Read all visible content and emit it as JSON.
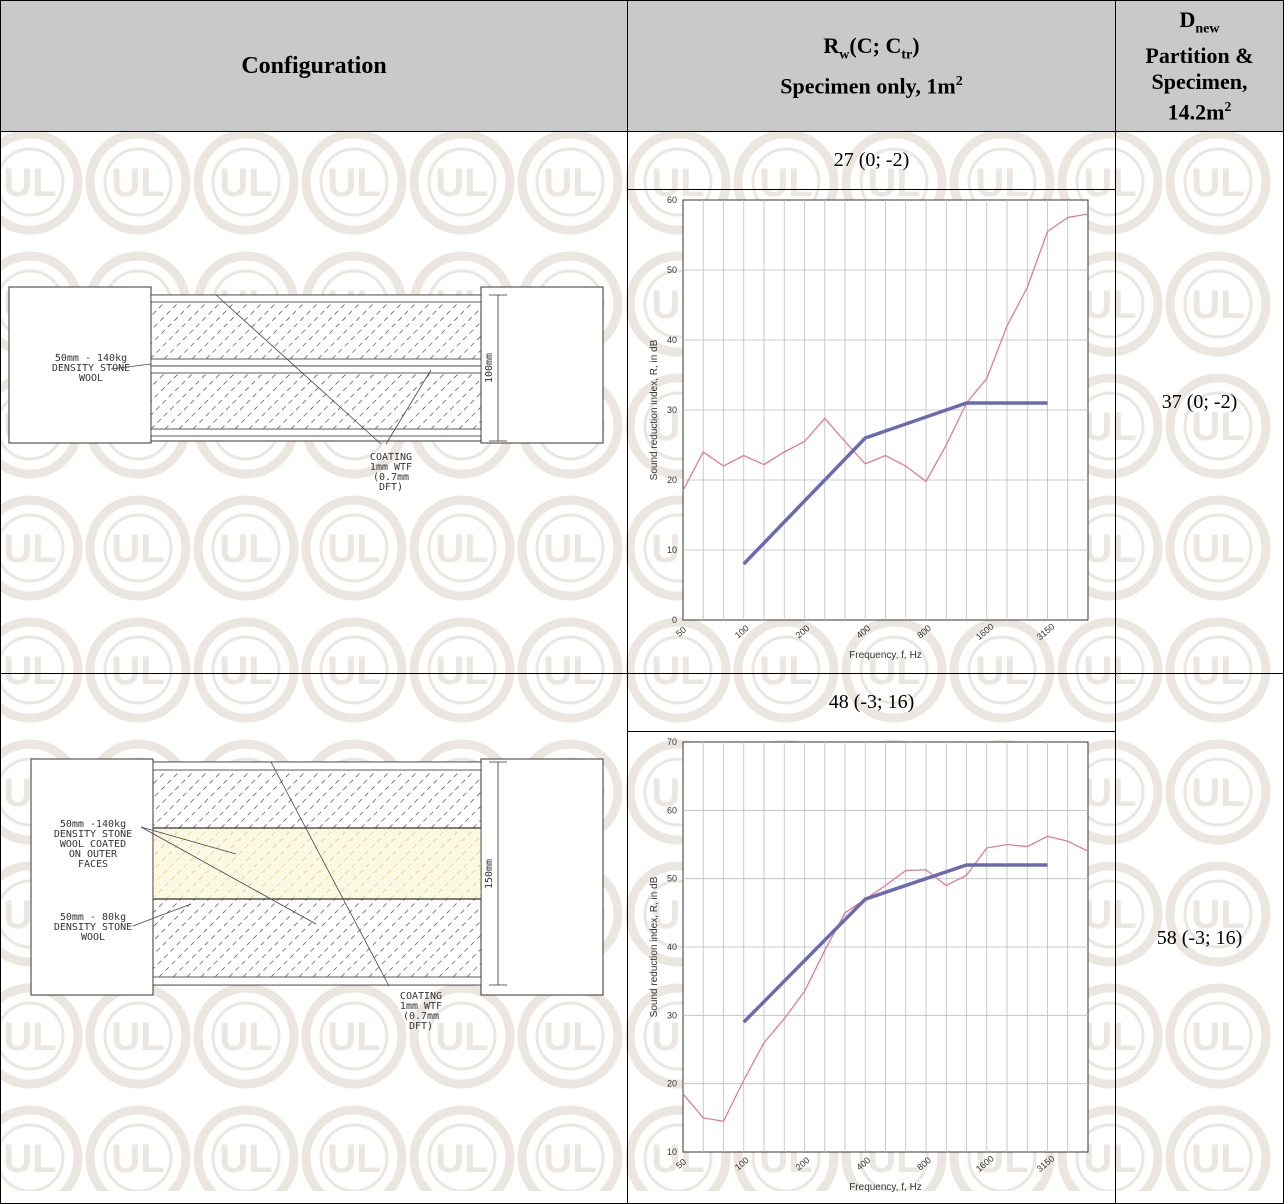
{
  "header": {
    "configuration": "Configuration",
    "rw_line1_R": "R",
    "rw_line1_w": "w",
    "rw_line1_mid": "(C; C",
    "rw_line1_tr": "tr",
    "rw_line1_end": ")",
    "rw_line2": "Specimen only, 1m",
    "rw_line2_sup": "2",
    "dnew_D": "D",
    "dnew_sub": "new",
    "dnew_line2": "Partition &",
    "dnew_line3": "Specimen,",
    "dnew_line4": "14.2m",
    "dnew_line4_sup": "2"
  },
  "rows": [
    {
      "rw": "27 (0; -2)",
      "dnew": "37 (0; -2)",
      "drawing": {
        "label_wool": [
          "50mm - 140kg",
          "DENSITY STONE",
          "WOOL"
        ],
        "label_coating": [
          "COATING",
          "1mm WTF",
          "(0.7mm",
          "DFT)"
        ],
        "dimension": "100mm"
      }
    },
    {
      "rw": "48 (-3; 16)",
      "dnew": "58 (-3; 16)",
      "drawing": {
        "label_wool": [
          "50mm -140kg",
          "DENSITY STONE",
          "WOOL COATED",
          "ON OUTER",
          "FACES"
        ],
        "label_wool2": [
          "50mm - 80kg",
          "DENSITY STONE",
          "WOOL"
        ],
        "label_coating": [
          "COATING",
          "1mm WTF",
          "(0.7mm",
          "DFT)"
        ],
        "dimension": "150mm"
      }
    }
  ],
  "chart_data": [
    {
      "type": "line",
      "xlabel": "Frequency, f, Hz",
      "ylabel": "Sound reduction index, R, in dB",
      "x_tick_labels": [
        "50",
        "100",
        "200",
        "400",
        "800",
        "1600",
        "3150"
      ],
      "x_bands": [
        50,
        63,
        80,
        100,
        125,
        160,
        200,
        250,
        315,
        400,
        500,
        630,
        800,
        1000,
        1250,
        1600,
        2000,
        2500,
        3150,
        4000,
        5000
      ],
      "ylim": [
        0,
        60
      ],
      "y_ticks": [
        0,
        10,
        20,
        30,
        40,
        50,
        60
      ],
      "series": [
        {
          "color": "#e07a9e",
          "values": [
            18.5,
            24,
            22,
            23.5,
            22.2,
            24,
            25.5,
            28.8,
            25.5,
            22.3,
            23.5,
            22,
            19.8,
            25,
            31,
            34.5,
            42,
            47.5,
            55.5,
            57.5,
            58
          ]
        },
        {
          "color": "#6a6ab0",
          "x": [
            100,
            400,
            1250,
            3150
          ],
          "values": [
            8,
            26,
            31,
            31
          ]
        }
      ]
    },
    {
      "type": "line",
      "xlabel": "Frequency, f, Hz",
      "ylabel": "Sound reduction index, R, in dB",
      "x_tick_labels": [
        "50",
        "100",
        "200",
        "400",
        "800",
        "1600",
        "3150"
      ],
      "x_bands": [
        50,
        63,
        80,
        100,
        125,
        160,
        200,
        250,
        315,
        400,
        500,
        630,
        800,
        1000,
        1250,
        1600,
        2000,
        2500,
        3150,
        4000,
        5000
      ],
      "ylim": [
        10,
        70
      ],
      "y_ticks": [
        10,
        20,
        30,
        40,
        50,
        60,
        70
      ],
      "series": [
        {
          "color": "#e07a9e",
          "values": [
            18.5,
            15,
            14.5,
            20.5,
            26,
            29.5,
            33.5,
            39.5,
            45,
            47,
            49,
            51.2,
            51.3,
            49,
            50.5,
            54.5,
            55,
            54.7,
            56.2,
            55.5,
            54
          ]
        },
        {
          "color": "#6a6ab0",
          "x": [
            100,
            400,
            1250,
            3150
          ],
          "values": [
            29,
            47,
            52,
            52
          ]
        }
      ]
    }
  ]
}
